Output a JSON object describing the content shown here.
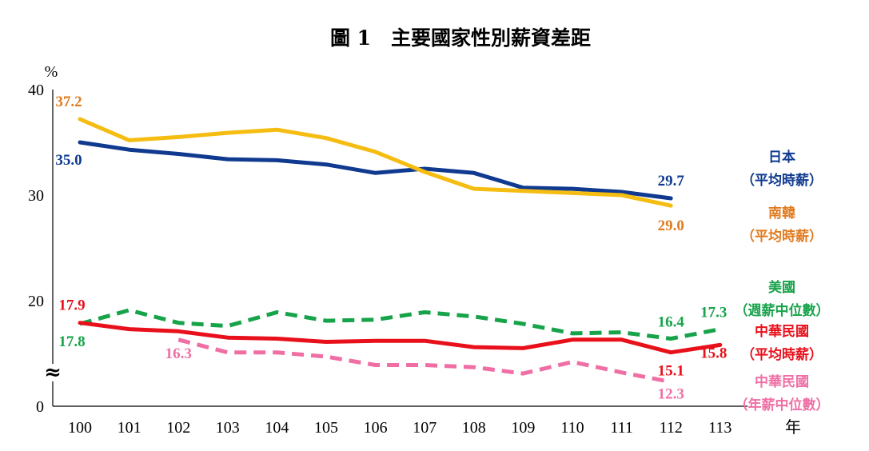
{
  "chart_data": {
    "type": "line",
    "title": "圖 1　主要國家性別薪資差距",
    "ylabel": "%",
    "xlabel": "年",
    "ylim": [
      0,
      40
    ],
    "yticks": [
      0,
      20,
      30,
      40
    ],
    "axis_break": "≈",
    "categories": [
      "100",
      "101",
      "102",
      "103",
      "104",
      "105",
      "106",
      "107",
      "108",
      "109",
      "110",
      "111",
      "112",
      "113"
    ],
    "series": [
      {
        "name": "日本",
        "name_detail": "（平均時薪）",
        "color": "#0f3a8f",
        "dash": "solid",
        "values": [
          35.0,
          34.3,
          33.9,
          33.4,
          33.3,
          32.9,
          32.1,
          32.5,
          32.1,
          30.7,
          30.6,
          30.3,
          29.7,
          null
        ],
        "labels": [
          {
            "index": 0,
            "text": "35.0"
          },
          {
            "index": 12,
            "text": "29.7"
          }
        ]
      },
      {
        "name": "南韓",
        "name_detail": "（平均時薪）",
        "color": "#f5bd12",
        "label_color": "#e07b20",
        "dash": "solid",
        "values": [
          37.2,
          35.2,
          35.5,
          35.9,
          36.2,
          35.4,
          34.1,
          32.2,
          30.6,
          30.4,
          30.2,
          30.0,
          29.0,
          null
        ],
        "labels": [
          {
            "index": 0,
            "text": "37.2"
          },
          {
            "index": 12,
            "text": "29.0"
          }
        ]
      },
      {
        "name": "美國",
        "name_detail": "（週薪中位數）",
        "color": "#17a34a",
        "dash": "dashed",
        "values": [
          17.8,
          19.1,
          17.9,
          17.6,
          18.9,
          18.1,
          18.2,
          18.9,
          18.5,
          17.8,
          16.9,
          17.0,
          16.4,
          17.3
        ],
        "labels": [
          {
            "index": 0,
            "text": "17.8"
          },
          {
            "index": 12,
            "text": "16.4"
          },
          {
            "index": 13,
            "text": "17.3"
          }
        ]
      },
      {
        "name": "中華民國",
        "name_detail": "（平均時薪）",
        "color": "#e8101b",
        "dash": "solid",
        "values": [
          17.9,
          17.3,
          17.1,
          16.5,
          16.4,
          16.1,
          16.2,
          16.2,
          15.6,
          15.5,
          16.3,
          16.3,
          15.1,
          15.8
        ],
        "labels": [
          {
            "index": 0,
            "text": "17.9"
          },
          {
            "index": 12,
            "text": "15.1"
          },
          {
            "index": 13,
            "text": "15.8"
          }
        ]
      },
      {
        "name": "中華民國",
        "name_detail": "（年薪中位數）",
        "color": "#ef6fa5",
        "dash": "dashed",
        "values": [
          null,
          null,
          16.3,
          15.1,
          15.1,
          14.7,
          13.9,
          13.9,
          13.7,
          13.1,
          14.2,
          13.2,
          12.3,
          null
        ],
        "labels": [
          {
            "index": 2,
            "text": "16.3"
          },
          {
            "index": 12,
            "text": "12.3"
          }
        ]
      }
    ]
  }
}
